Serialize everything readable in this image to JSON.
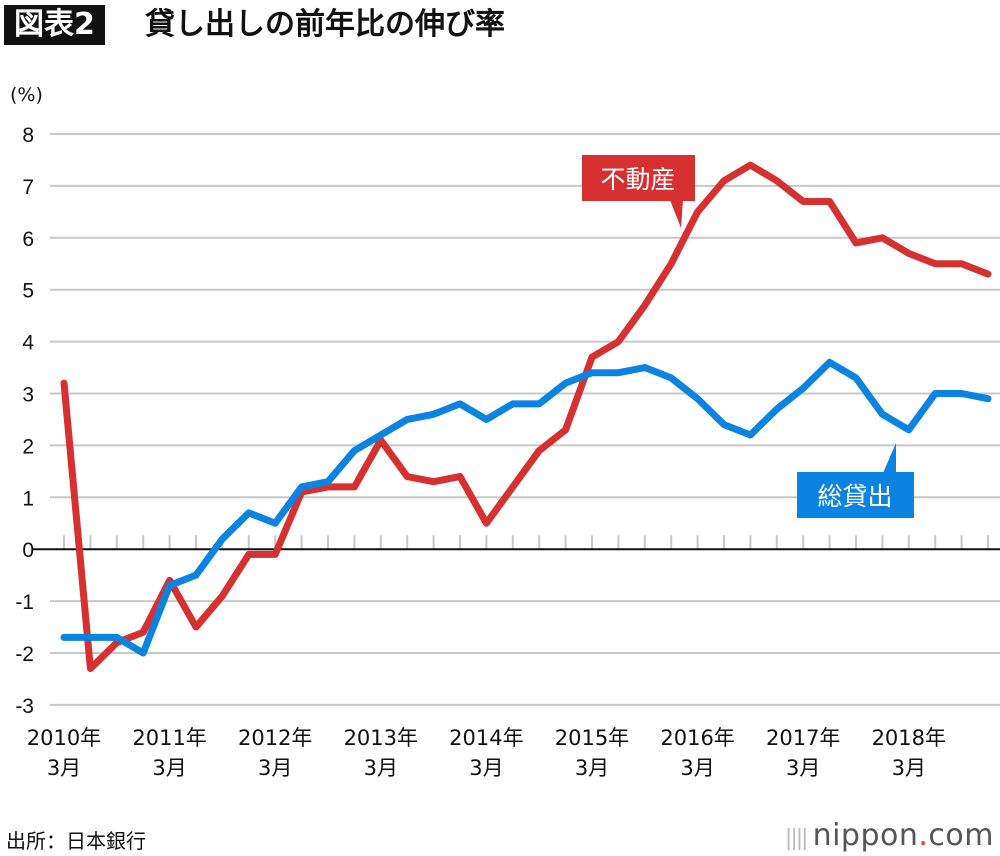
{
  "header": {
    "badge": "図表2",
    "title": "貸し出しの前年比の伸び率"
  },
  "footer": {
    "source": "出所：日本銀行",
    "logo": "nippon.com",
    "logo_main": "nippon",
    "logo_dot": ".",
    "logo_tld": "com"
  },
  "chart_data": {
    "type": "line",
    "unit_label": "(%)",
    "ylim": [
      -3,
      8
    ],
    "yticks": [
      8,
      7,
      6,
      5,
      4,
      3,
      2,
      1,
      0,
      -1,
      -2,
      -3
    ],
    "grid": true,
    "x_start": "2010年3月",
    "x_frequency": "quarterly",
    "xtick_labels": [
      {
        "year": "2010年",
        "month": "3月",
        "index": 0
      },
      {
        "year": "2011年",
        "month": "3月",
        "index": 4
      },
      {
        "year": "2012年",
        "month": "3月",
        "index": 8
      },
      {
        "year": "2013年",
        "month": "3月",
        "index": 12
      },
      {
        "year": "2014年",
        "month": "3月",
        "index": 16
      },
      {
        "year": "2015年",
        "month": "3月",
        "index": 20
      },
      {
        "year": "2016年",
        "month": "3月",
        "index": 24
      },
      {
        "year": "2017年",
        "month": "3月",
        "index": 28
      },
      {
        "year": "2018年",
        "month": "3月",
        "index": 32
      }
    ],
    "series": [
      {
        "name": "不動産",
        "color": "#d63031",
        "values": [
          3.2,
          -2.3,
          -1.8,
          -1.6,
          -0.6,
          -1.5,
          -0.9,
          -0.1,
          -0.1,
          1.1,
          1.2,
          1.2,
          2.1,
          1.4,
          1.3,
          1.4,
          0.5,
          1.2,
          1.9,
          2.3,
          3.7,
          4.0,
          4.7,
          5.5,
          6.5,
          7.1,
          7.4,
          7.1,
          6.7,
          6.7,
          5.9,
          6.0,
          5.7,
          5.5,
          5.5,
          5.3
        ]
      },
      {
        "name": "総貸出",
        "color": "#0a84e0",
        "values": [
          -1.7,
          -1.7,
          -1.7,
          -2.0,
          -0.7,
          -0.5,
          0.2,
          0.7,
          0.5,
          1.2,
          1.3,
          1.9,
          2.2,
          2.5,
          2.6,
          2.8,
          2.5,
          2.8,
          2.8,
          3.2,
          3.4,
          3.4,
          3.5,
          3.3,
          2.9,
          2.4,
          2.2,
          2.7,
          3.1,
          3.6,
          3.3,
          2.6,
          2.3,
          3.0,
          3.0,
          2.9
        ]
      }
    ]
  }
}
